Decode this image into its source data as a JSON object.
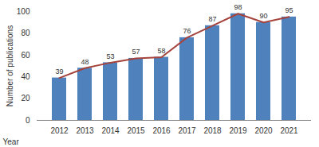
{
  "chart_data": {
    "type": "bar",
    "x_label": "Year",
    "y_label": "Number of publications",
    "categories": [
      "2012",
      "2013",
      "2014",
      "2015",
      "2016",
      "2017",
      "2018",
      "2019",
      "2020",
      "2021"
    ],
    "series": [
      {
        "type": "bar",
        "color": "#4f81bd",
        "values": [
          39,
          48,
          53,
          57,
          58,
          76,
          87,
          98,
          90,
          95
        ]
      },
      {
        "type": "line",
        "color": "#a5433d",
        "values": [
          39,
          48,
          53,
          57,
          58,
          76,
          87,
          98,
          90,
          95
        ]
      }
    ],
    "ylim": [
      0,
      100
    ],
    "yticks": [
      0,
      20,
      40,
      60,
      80,
      100
    ],
    "grid": false,
    "data_labels": true
  }
}
